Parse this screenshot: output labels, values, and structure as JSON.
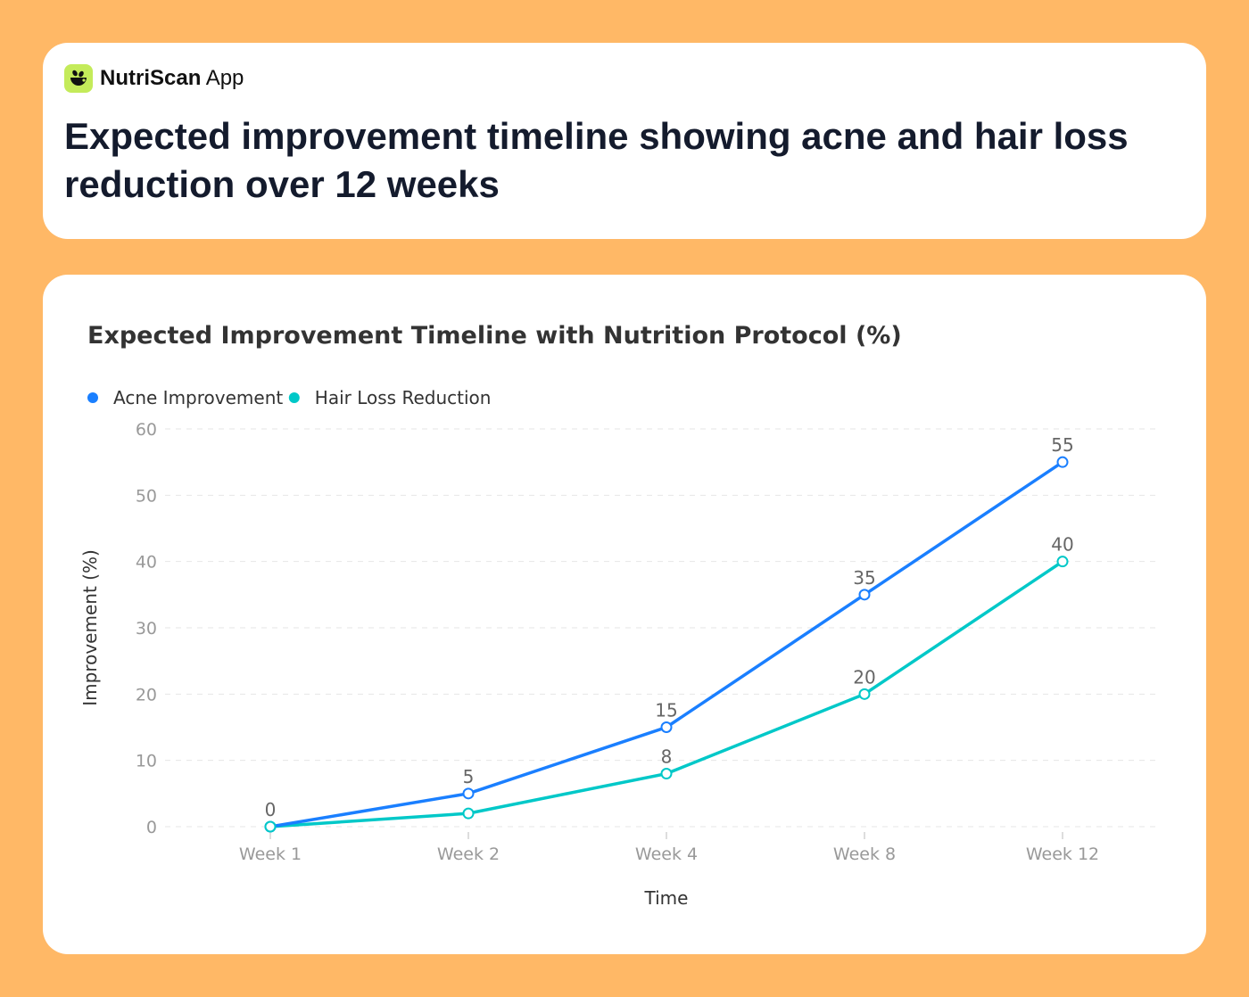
{
  "app": {
    "name_bold": "NutriScan",
    "name_light": "App",
    "logo_icon": "bowl-leaf-icon",
    "logo_color": "#C4EB5A"
  },
  "header": {
    "title": "Expected improvement timeline showing acne and hair loss reduction over 12 weeks"
  },
  "chart_data": {
    "type": "line",
    "title": "Expected Improvement Timeline with Nutrition Protocol (%)",
    "xlabel": "Time",
    "ylabel": "Improvement (%)",
    "categories": [
      "Week 1",
      "Week 2",
      "Week 4",
      "Week 8",
      "Week 12"
    ],
    "ylim": [
      0,
      60
    ],
    "yticks": [
      0,
      10,
      20,
      30,
      40,
      50,
      60
    ],
    "grid": "horizontal dashed",
    "legend": "top-left",
    "series": [
      {
        "name": "Acne Improvement",
        "color": "#1A7FFF",
        "values": [
          0,
          5,
          15,
          35,
          55
        ],
        "data_labels": [
          "0",
          "5",
          "15",
          "35",
          "55"
        ]
      },
      {
        "name": "Hair Loss Reduction",
        "color": "#00C8C8",
        "values": [
          0,
          2,
          8,
          20,
          40
        ],
        "data_labels": [
          null,
          null,
          "8",
          "20",
          "40"
        ]
      }
    ]
  }
}
